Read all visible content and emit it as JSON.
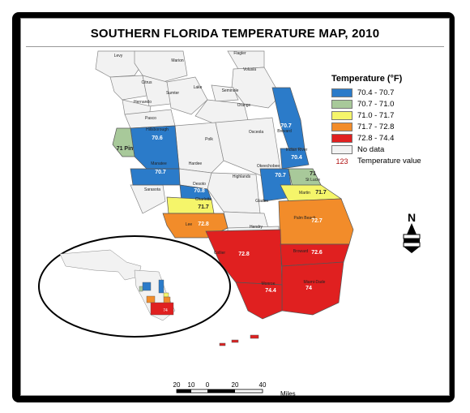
{
  "title": "SOUTHERN FLORIDA TEMPERATURE MAP, 2010",
  "legend": {
    "title": "Temperature (°F)",
    "classes": [
      {
        "label": "70.4 - 70.7",
        "color": "#2b7bc9"
      },
      {
        "label": "70.7 - 71.0",
        "color": "#a8c99a"
      },
      {
        "label": "71.0 - 71.7",
        "color": "#f5f56a"
      },
      {
        "label": "71.7 - 72.8",
        "color": "#f28c2a"
      },
      {
        "label": "72.8 - 74.4",
        "color": "#e02020"
      }
    ],
    "nodata_label": "No data",
    "nodata_color": "#f2f2f2",
    "sample_value": "123",
    "sample_label": "Temperature value"
  },
  "counties": {
    "levy": "Levy",
    "marion": "Marion",
    "flagler": "Flagler",
    "volusia": "Volusia",
    "citrus": "Citrus",
    "sumter": "Sumter",
    "lake": "Lake",
    "seminole": "Seminole",
    "hernando": "Hernando",
    "orange": "Orange",
    "pasco": "Pasco",
    "hillsborough": "Hillsborough",
    "hillsborough_val": "70.6",
    "pinellas_val": "71 Pin",
    "polk": "Polk",
    "osceola": "Osceola",
    "brevard": "Brevard",
    "brevard_val": "70.7",
    "manatee": "Manatee",
    "manatee_val": "70.7",
    "hardee": "Hardee",
    "highlands": "Highlands",
    "okeechobee": "Okeechobee",
    "okeechobee_val": "70.7",
    "indian_river": "Indian River",
    "indian_river_val": "70.4",
    "sarasota": "Sarasota",
    "desoto": "Desoto",
    "desoto_val": "70.8",
    "st_lucie": "St Lucie",
    "st_lucie_val": "71",
    "charlotte": "Charlotte",
    "charlotte_val": "71.7",
    "martin": "Martin",
    "martin_val": "71.7",
    "glades": "Glades",
    "lee": "Lee",
    "lee_val": "72.8",
    "hendry": "Hendry",
    "palm_beach": "Palm Beach",
    "palm_beach_val": "72.7",
    "collier": "Collier",
    "collier_val": "72.8",
    "broward": "Broward",
    "broward_val": "72.6",
    "monroe": "Monroe",
    "monroe_val": "74.4",
    "miami_dade": "Miami-Dade",
    "miami_dade_val": "74",
    "inset_val": "74"
  },
  "scale": {
    "ticks": [
      "20",
      "10",
      "0",
      "20",
      "40"
    ],
    "unit": "Miles"
  },
  "north_label": "N"
}
